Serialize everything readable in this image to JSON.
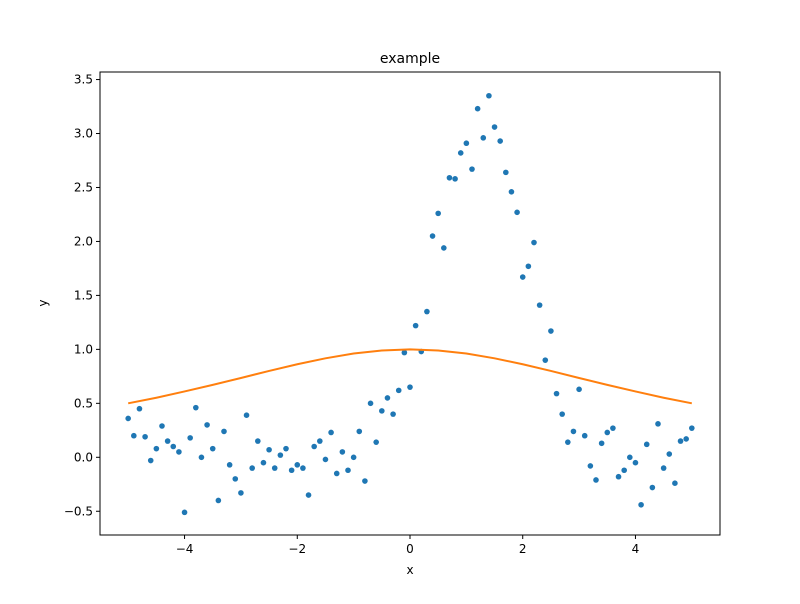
{
  "chart_data": {
    "type": "scatter",
    "title": "example",
    "x_label": "x",
    "y_label": "y",
    "xlim": [
      -5.5,
      5.5
    ],
    "ylim": [
      -0.72,
      3.57
    ],
    "xticks": [
      {
        "value": -4,
        "label": "−4"
      },
      {
        "value": -2,
        "label": "−2"
      },
      0,
      2,
      4
    ],
    "yticks": [
      {
        "value": -0.5,
        "label": "−0.5"
      },
      {
        "value": 0,
        "label": "0.0"
      },
      0.5,
      {
        "value": 1,
        "label": "1.0"
      },
      1.5,
      {
        "value": 2,
        "label": "2.0"
      },
      2.5,
      {
        "value": 3,
        "label": "3.0"
      },
      3.5
    ],
    "series": [
      {
        "type": "scatter",
        "color": "#1f77b4",
        "x": [
          -5.0,
          -4.9,
          -4.8,
          -4.7,
          -4.6,
          -4.5,
          -4.4,
          -4.3,
          -4.2,
          -4.1,
          -4.0,
          -3.9,
          -3.8,
          -3.7,
          -3.6,
          -3.5,
          -3.4,
          -3.3,
          -3.2,
          -3.1,
          -3.0,
          -2.9,
          -2.8,
          -2.7,
          -2.6,
          -2.5,
          -2.4,
          -2.3,
          -2.2,
          -2.1,
          -2.0,
          -1.9,
          -1.8,
          -1.7,
          -1.6,
          -1.5,
          -1.4,
          -1.3,
          -1.2,
          -1.1,
          -1.0,
          -0.9,
          -0.8,
          -0.7,
          -0.6,
          -0.5,
          -0.4,
          -0.3,
          -0.2,
          -0.1,
          0.0,
          0.1,
          0.2,
          0.3,
          0.4,
          0.5,
          0.6,
          0.7,
          0.8,
          0.9,
          1.0,
          1.1,
          1.2,
          1.3,
          1.4,
          1.5,
          1.6,
          1.7,
          1.8,
          1.9,
          2.0,
          2.1,
          2.2,
          2.3,
          2.4,
          2.5,
          2.6,
          2.7,
          2.8,
          2.9,
          3.0,
          3.1,
          3.2,
          3.3,
          3.4,
          3.5,
          3.6,
          3.7,
          3.8,
          3.9,
          4.0,
          4.1,
          4.2,
          4.3,
          4.4,
          4.5,
          4.6,
          4.7,
          4.8,
          4.9,
          5.0
        ],
        "values": [
          0.36,
          0.2,
          0.45,
          0.19,
          -0.03,
          0.08,
          0.29,
          0.15,
          0.1,
          0.05,
          -0.51,
          0.18,
          0.46,
          0.0,
          0.3,
          0.08,
          -0.4,
          0.24,
          -0.07,
          -0.2,
          -0.33,
          0.39,
          -0.1,
          0.15,
          -0.05,
          0.07,
          -0.1,
          0.02,
          0.08,
          -0.12,
          -0.07,
          -0.1,
          -0.35,
          0.1,
          0.15,
          -0.02,
          0.23,
          -0.15,
          0.05,
          -0.12,
          0.0,
          0.24,
          -0.22,
          0.5,
          0.14,
          0.43,
          0.55,
          0.4,
          0.62,
          0.97,
          0.65,
          1.22,
          0.98,
          1.35,
          2.05,
          2.26,
          1.94,
          2.59,
          2.58,
          2.82,
          2.91,
          2.67,
          3.23,
          2.96,
          3.35,
          3.06,
          2.93,
          2.64,
          2.46,
          2.27,
          1.67,
          1.77,
          1.99,
          1.41,
          0.9,
          1.17,
          0.59,
          0.4,
          0.14,
          0.24,
          0.63,
          0.2,
          -0.08,
          -0.21,
          0.13,
          0.23,
          0.27,
          -0.18,
          -0.12,
          0.0,
          -0.05,
          -0.44,
          0.12,
          -0.28,
          0.31,
          -0.1,
          0.03,
          -0.24,
          0.15,
          0.17,
          0.27
        ]
      },
      {
        "type": "line",
        "color": "#ff7f0e",
        "x": [
          -5.0,
          -4.5,
          -4.0,
          -3.5,
          -3.0,
          -2.5,
          -2.0,
          -1.5,
          -1.0,
          -0.5,
          0.0,
          0.5,
          1.0,
          1.5,
          2.0,
          2.5,
          3.0,
          3.5,
          4.0,
          4.5,
          5.0
        ],
        "values": [
          0.5,
          0.552,
          0.61,
          0.671,
          0.735,
          0.8,
          0.862,
          0.917,
          0.962,
          0.99,
          1.0,
          0.99,
          0.962,
          0.917,
          0.862,
          0.8,
          0.735,
          0.671,
          0.61,
          0.552,
          0.5
        ]
      }
    ]
  }
}
